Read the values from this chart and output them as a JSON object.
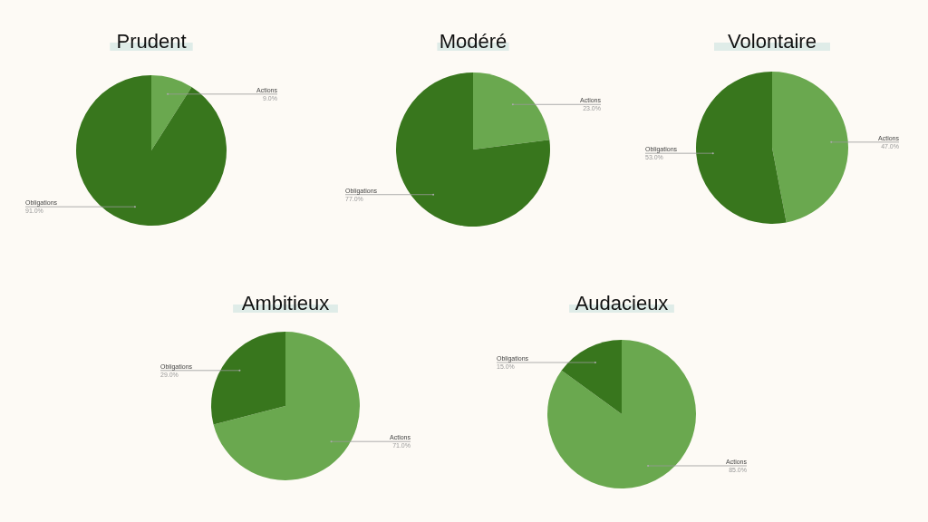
{
  "chart_data": [
    {
      "type": "pie",
      "title": "Prudent",
      "categories": [
        "Actions",
        "Obligations"
      ],
      "values": [
        9,
        91
      ],
      "colors": [
        "#6aa84f",
        "#38761d"
      ],
      "value_labels": [
        "9.0%",
        "91.0%"
      ]
    },
    {
      "type": "pie",
      "title": "Modéré",
      "categories": [
        "Actions",
        "Obligations"
      ],
      "values": [
        23,
        77
      ],
      "colors": [
        "#6aa84f",
        "#38761d"
      ],
      "value_labels": [
        "23.0%",
        "77.0%"
      ]
    },
    {
      "type": "pie",
      "title": "Volontaire",
      "categories": [
        "Actions",
        "Obligations"
      ],
      "values": [
        47,
        53
      ],
      "colors": [
        "#6aa84f",
        "#38761d"
      ],
      "value_labels": [
        "47.0%",
        "53.0%"
      ]
    },
    {
      "type": "pie",
      "title": "Ambitieux",
      "categories": [
        "Actions",
        "Obligations"
      ],
      "values": [
        71,
        29
      ],
      "colors": [
        "#6aa84f",
        "#38761d"
      ],
      "value_labels": [
        "71.0%",
        "29.0%"
      ]
    },
    {
      "type": "pie",
      "title": "Audacieux",
      "categories": [
        "Actions",
        "Obligations"
      ],
      "values": [
        85,
        15
      ],
      "colors": [
        "#6aa84f",
        "#38761d"
      ],
      "value_labels": [
        "85.0%",
        "15.0%"
      ]
    }
  ]
}
